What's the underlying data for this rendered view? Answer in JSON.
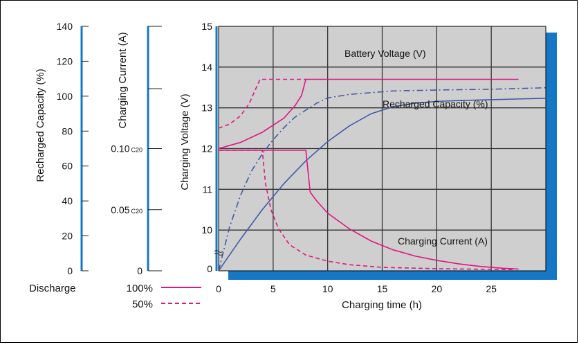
{
  "chart_data": {
    "type": "line",
    "x_axis": {
      "label": "Charging time (h)",
      "range": [
        0,
        30
      ],
      "ticks": [
        0,
        5,
        10,
        15,
        20,
        25
      ]
    },
    "voltage_axis": {
      "label": "Charging Voltage (V)",
      "range": [
        9,
        15
      ],
      "ticks": [
        10,
        11,
        12,
        13,
        14,
        15
      ]
    },
    "capacity_axis": {
      "label": "Recharged Capacity (%)",
      "range": [
        0,
        140
      ],
      "ticks": [
        0,
        20,
        40,
        60,
        80,
        100,
        120,
        140
      ]
    },
    "current_axis": {
      "label": "Charging Current (A)",
      "ticks": [
        {
          "value": 0,
          "text": "0",
          "sub": ""
        },
        {
          "value": 0.05,
          "text": "0.05",
          "sub": "C20"
        },
        {
          "value": 0.1,
          "text": "0.10",
          "sub": "C20"
        }
      ]
    },
    "annotations": {
      "battery_voltage": "Battery Voltage (V)",
      "recharged_capacity": "Recharged Capacity (%)",
      "charging_current": "Charging Current (A)"
    },
    "legend": {
      "title": "Discharge",
      "entries": [
        {
          "label": "100%",
          "style": "solid"
        },
        {
          "label": "50%",
          "style": "dashed"
        }
      ]
    },
    "colors": {
      "voltage_current": "#e0157f",
      "capacity": "#3c5aa8",
      "axis_bar": "#1677c4",
      "shadow": "#1677c4",
      "grid": "#333333"
    },
    "series": [
      {
        "legend": "100%",
        "quantity": "voltage",
        "style": "solid",
        "points": [
          [
            0,
            12.0
          ],
          [
            2,
            12.15
          ],
          [
            4,
            12.4
          ],
          [
            6,
            12.75
          ],
          [
            7,
            13.05
          ],
          [
            7.6,
            13.3
          ],
          [
            8,
            13.7
          ],
          [
            27.5,
            13.7
          ]
        ]
      },
      {
        "legend": "50%",
        "quantity": "voltage",
        "style": "dashed",
        "points": [
          [
            0,
            12.5
          ],
          [
            1,
            12.6
          ],
          [
            2,
            12.8
          ],
          [
            2.8,
            13.1
          ],
          [
            3.3,
            13.4
          ],
          [
            3.8,
            13.7
          ],
          [
            8,
            13.7
          ]
        ]
      },
      {
        "legend": "100%",
        "quantity": "capacity",
        "style": "solid",
        "points": [
          [
            0,
            0
          ],
          [
            2,
            18
          ],
          [
            4,
            35
          ],
          [
            6,
            50
          ],
          [
            8,
            63
          ],
          [
            10,
            74
          ],
          [
            12,
            83
          ],
          [
            14,
            90
          ],
          [
            16,
            94
          ],
          [
            18,
            96
          ],
          [
            20,
            97
          ],
          [
            22,
            97.5
          ],
          [
            25,
            98
          ],
          [
            31,
            99
          ]
        ]
      },
      {
        "legend": "50%",
        "quantity": "capacity",
        "style": "dashed",
        "points": [
          [
            0,
            0
          ],
          [
            1,
            25
          ],
          [
            2,
            43
          ],
          [
            3,
            57
          ],
          [
            4,
            67
          ],
          [
            5,
            75
          ],
          [
            6,
            82
          ],
          [
            7,
            88
          ],
          [
            8,
            92
          ],
          [
            9,
            96
          ],
          [
            10,
            99
          ],
          [
            12,
            101
          ],
          [
            14,
            102
          ],
          [
            16,
            103
          ],
          [
            20,
            103.5
          ],
          [
            25,
            104
          ],
          [
            31,
            105
          ]
        ]
      },
      {
        "legend": "100%",
        "quantity": "current_percent",
        "style": "solid",
        "points": [
          [
            0,
            69
          ],
          [
            8,
            69
          ],
          [
            8.4,
            45
          ],
          [
            9,
            40
          ],
          [
            10,
            33
          ],
          [
            12,
            24
          ],
          [
            14,
            17
          ],
          [
            16,
            12
          ],
          [
            18,
            8.5
          ],
          [
            20,
            6
          ],
          [
            22,
            4
          ],
          [
            24,
            2.5
          ],
          [
            26,
            1.5
          ],
          [
            27.5,
            1.0
          ]
        ]
      },
      {
        "legend": "50%",
        "quantity": "current_percent",
        "style": "dashed",
        "points": [
          [
            0,
            69
          ],
          [
            4,
            69
          ],
          [
            4.3,
            50
          ],
          [
            4.8,
            35
          ],
          [
            5.5,
            24
          ],
          [
            6.5,
            15
          ],
          [
            8,
            9
          ],
          [
            10,
            5.5
          ],
          [
            12,
            3.5
          ],
          [
            15,
            2
          ],
          [
            20,
            1.2
          ],
          [
            27,
            0.7
          ]
        ]
      }
    ]
  }
}
